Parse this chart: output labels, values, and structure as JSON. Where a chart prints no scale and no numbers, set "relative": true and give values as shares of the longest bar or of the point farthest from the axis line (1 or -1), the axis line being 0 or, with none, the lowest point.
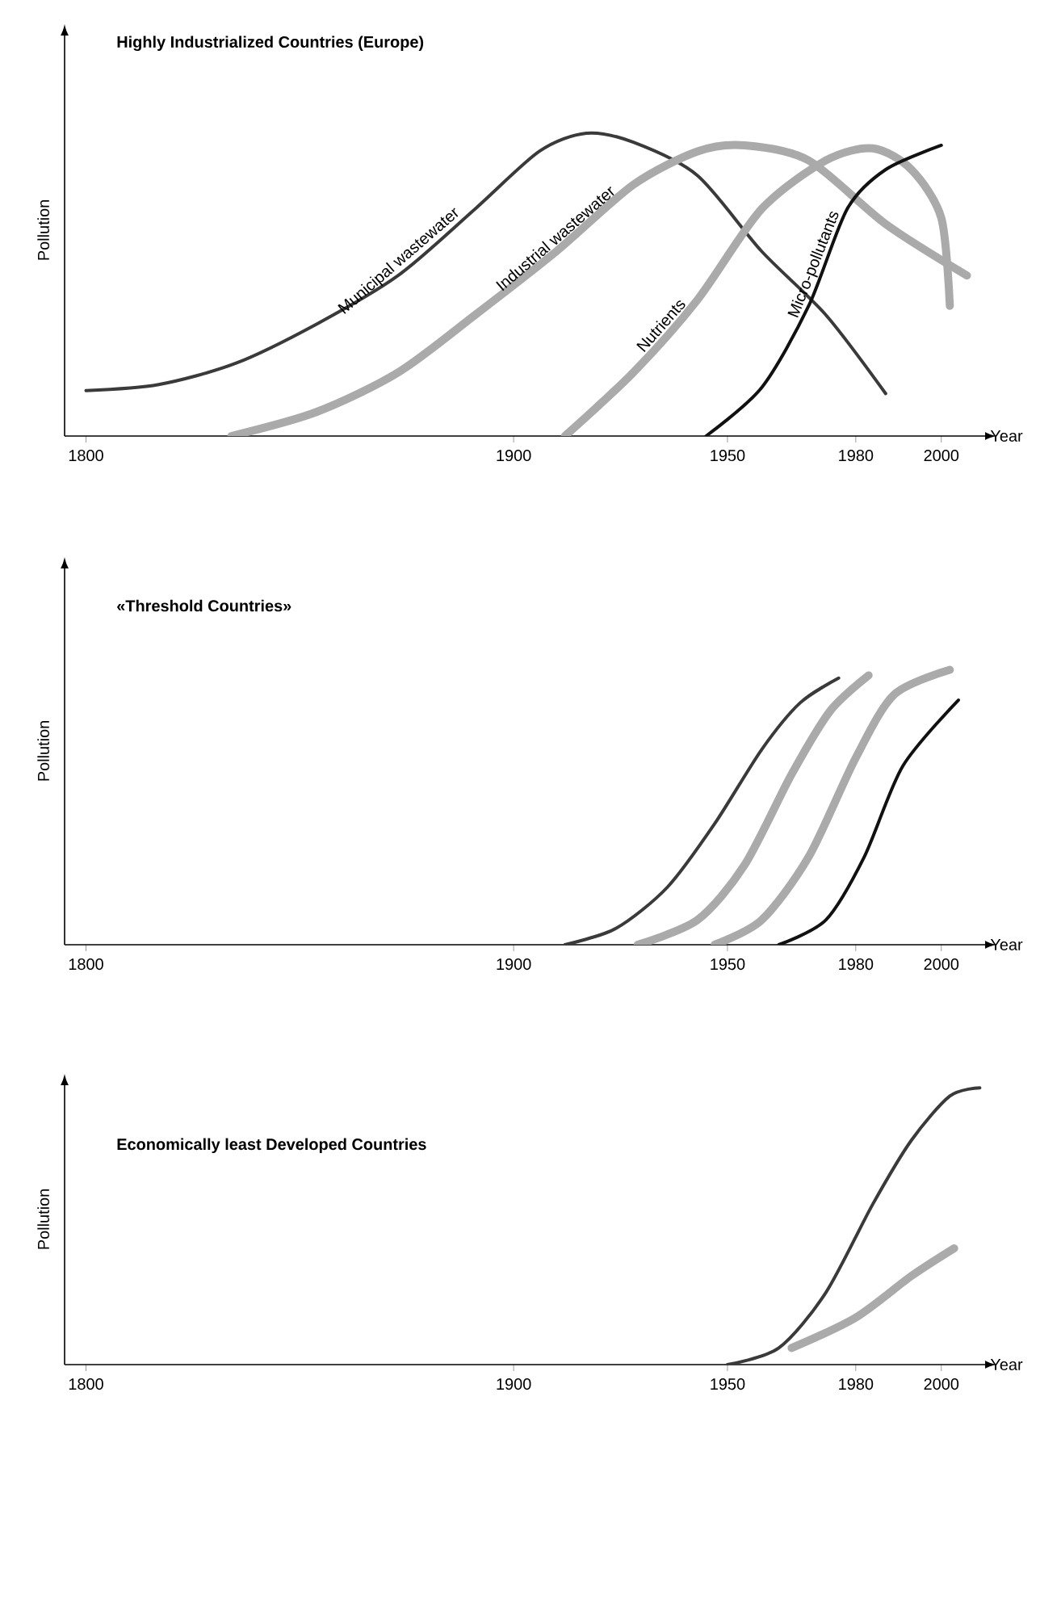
{
  "chart_data": [
    {
      "type": "line",
      "relative": true,
      "title": "Highly Industrialized Countries (Europe)",
      "xlabel": "Year",
      "ylabel": "Pollution",
      "xlim": [
        1795,
        2011
      ],
      "xticks": [
        1800,
        1900,
        1950,
        1980,
        2000
      ],
      "series": [
        {
          "name": "Municipal wastewater",
          "color": "#3a3a3a",
          "x": [
            1800,
            1817,
            1835,
            1854,
            1873,
            1891,
            1906,
            1917,
            1928,
            1943,
            1958,
            1973,
            1987
          ],
          "values": [
            0.15,
            0.17,
            0.24,
            0.37,
            0.53,
            0.75,
            0.94,
            1.0,
            0.97,
            0.86,
            0.61,
            0.4,
            0.14
          ]
        },
        {
          "name": "Industrial wastewater",
          "color": "#aaaaaa",
          "x": [
            1834,
            1854,
            1873,
            1891,
            1910,
            1928,
            1943,
            1954,
            1969,
            1987,
            2006
          ],
          "values": [
            0,
            0.08,
            0.21,
            0.4,
            0.61,
            0.83,
            0.94,
            0.96,
            0.91,
            0.7,
            0.53
          ]
        },
        {
          "name": "Nutrients",
          "color": "#aaaaaa",
          "x": [
            1912,
            1928,
            1943,
            1958,
            1973,
            1984,
            1993,
            2000,
            2002
          ],
          "values": [
            0,
            0.21,
            0.45,
            0.75,
            0.91,
            0.95,
            0.88,
            0.72,
            0.43
          ]
        },
        {
          "name": "Micro-pollutants",
          "color": "#111111",
          "x": [
            1945,
            1958,
            1969,
            1978,
            1987,
            2000
          ],
          "values": [
            0,
            0.16,
            0.43,
            0.75,
            0.88,
            0.96
          ]
        }
      ]
    },
    {
      "type": "line",
      "relative": true,
      "title": "«Threshold Countries»",
      "xlabel": "Year",
      "ylabel": "Pollution",
      "xlim": [
        1795,
        2011
      ],
      "xticks": [
        1800,
        1900,
        1950,
        1980,
        2000
      ],
      "series": [
        {
          "color": "#3a3a3a",
          "x": [
            1912,
            1924,
            1936,
            1947,
            1958,
            1967,
            1976
          ],
          "values": [
            0,
            0.06,
            0.21,
            0.44,
            0.71,
            0.88,
            0.97
          ]
        },
        {
          "color": "#aaaaaa",
          "x": [
            1929,
            1943,
            1954,
            1965,
            1974,
            1983
          ],
          "values": [
            0,
            0.09,
            0.29,
            0.62,
            0.85,
            0.98
          ]
        },
        {
          "color": "#aaaaaa",
          "x": [
            1947,
            1958,
            1969,
            1980,
            1989,
            2002
          ],
          "values": [
            0,
            0.09,
            0.32,
            0.68,
            0.91,
            1.0
          ]
        },
        {
          "color": "#111111",
          "x": [
            1962,
            1973,
            1982,
            1991,
            2004
          ],
          "values": [
            0,
            0.09,
            0.32,
            0.65,
            0.89
          ]
        }
      ]
    },
    {
      "type": "line",
      "relative": true,
      "title": "Economically least Developed Countries",
      "xlabel": "Year",
      "ylabel": "Pollution",
      "xlim": [
        1795,
        2011
      ],
      "xticks": [
        1800,
        1900,
        1950,
        1980,
        2000
      ],
      "series": [
        {
          "color": "#3a3a3a",
          "x": [
            1950,
            1962,
            1973,
            1984,
            1993,
            2002,
            2009
          ],
          "values": [
            0,
            0.06,
            0.26,
            0.58,
            0.81,
            0.97,
            1.0
          ]
        },
        {
          "color": "#aaaaaa",
          "x": [
            1965,
            1980,
            1993,
            2003
          ],
          "values": [
            0.06,
            0.17,
            0.32,
            0.42
          ]
        }
      ]
    }
  ]
}
